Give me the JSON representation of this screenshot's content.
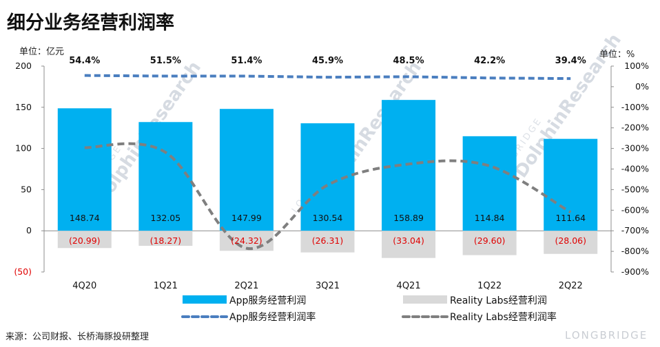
{
  "title": "细分业务经营利润率",
  "left_unit": "单位：亿元",
  "right_unit": "单位：%",
  "source": "来源：公司财报、长桥海豚投研整理",
  "watermark": {
    "main": "DolphinResearch",
    "sub": "LONGBRIDGE",
    "brand": "LONGBRIDGE"
  },
  "chart_data": {
    "type": "bar",
    "categories": [
      "4Q20",
      "1Q21",
      "2Q21",
      "3Q21",
      "4Q21",
      "1Q22",
      "2Q22"
    ],
    "left_axis": {
      "ylim": [
        -50,
        200
      ],
      "ticks": [
        200,
        150,
        100,
        50,
        0,
        -50
      ],
      "tick_labels": [
        "200",
        "150",
        "100",
        "50",
        "0",
        "(50)"
      ]
    },
    "right_axis": {
      "ylim": [
        -900,
        100
      ],
      "ticks": [
        100,
        0,
        -100,
        -200,
        -300,
        -400,
        -500,
        -600,
        -700,
        -800,
        -900
      ],
      "tick_labels": [
        "100%",
        "0%",
        "-100%",
        "-200%",
        "-300%",
        "-400%",
        "-500%",
        "-600%",
        "-700%",
        "-800%",
        "-900%"
      ]
    },
    "series": [
      {
        "name": "App服务经营利润",
        "kind": "bar",
        "axis": "left",
        "color": "#00b0f0",
        "values": [
          148.74,
          132.05,
          147.99,
          130.54,
          158.89,
          114.84,
          111.64
        ],
        "labels": [
          "148.74",
          "132.05",
          "147.99",
          "130.54",
          "158.89",
          "114.84",
          "111.64"
        ]
      },
      {
        "name": "Reality Labs经营利润",
        "kind": "bar",
        "axis": "left",
        "color": "#d9d9d9",
        "values": [
          -20.99,
          -18.27,
          -24.32,
          -26.31,
          -33.04,
          -29.6,
          -28.06
        ],
        "labels": [
          "(20.99)",
          "(18.27)",
          "(24.32)",
          "(26.31)",
          "(33.04)",
          "(29.60)",
          "(28.06)"
        ]
      },
      {
        "name": "App服务经营利润率",
        "kind": "line",
        "axis": "right",
        "color": "#4a7ebf",
        "values": [
          54.4,
          51.5,
          51.4,
          45.9,
          48.5,
          42.2,
          39.4
        ],
        "labels": [
          "54.4%",
          "51.5%",
          "51.4%",
          "45.9%",
          "48.5%",
          "42.2%",
          "39.4%"
        ]
      },
      {
        "name": "Reality Labs经营利润率",
        "kind": "line",
        "axis": "right",
        "color": "#7f7f7f",
        "values": [
          -296,
          -319,
          -785,
          -478,
          -376,
          -385,
          -610
        ]
      }
    ],
    "grid": false,
    "legend_position": "bottom"
  }
}
